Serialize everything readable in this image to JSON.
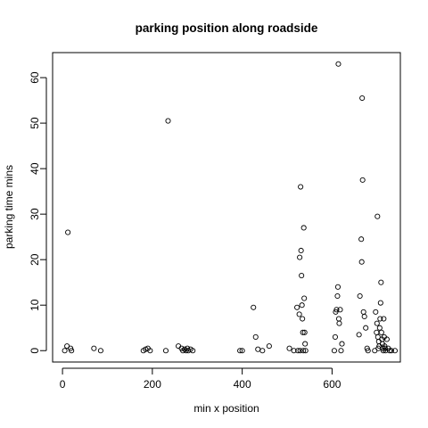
{
  "chart_data": {
    "type": "scatter",
    "title": "parking position along roadside",
    "xlabel": "min x position",
    "ylabel": "parking time mins",
    "xlim": [
      -22,
      752
    ],
    "ylim": [
      -2.5,
      65.5
    ],
    "x_ticks": [
      0,
      200,
      400,
      600
    ],
    "y_ticks": [
      0,
      10,
      20,
      30,
      40,
      50,
      60
    ],
    "grid": false,
    "legend": "none",
    "marker": "open-circle",
    "color": "#000000",
    "points": [
      [
        5,
        0
      ],
      [
        10,
        1
      ],
      [
        12,
        26
      ],
      [
        18,
        0.5
      ],
      [
        20,
        0
      ],
      [
        70,
        0.5
      ],
      [
        85,
        0
      ],
      [
        180,
        0
      ],
      [
        185,
        0.3
      ],
      [
        190,
        0.5
      ],
      [
        195,
        0
      ],
      [
        230,
        0
      ],
      [
        235,
        50.5
      ],
      [
        258,
        1
      ],
      [
        265,
        0.5
      ],
      [
        268,
        0
      ],
      [
        272,
        0.3
      ],
      [
        275,
        0
      ],
      [
        278,
        0.5
      ],
      [
        280,
        0
      ],
      [
        285,
        0.3
      ],
      [
        290,
        0
      ],
      [
        395,
        0
      ],
      [
        400,
        0
      ],
      [
        425,
        9.5
      ],
      [
        430,
        3
      ],
      [
        435,
        0.3
      ],
      [
        445,
        0
      ],
      [
        460,
        1
      ],
      [
        505,
        0.5
      ],
      [
        515,
        0
      ],
      [
        522,
        9.5
      ],
      [
        524,
        0
      ],
      [
        527,
        8
      ],
      [
        528,
        20.5
      ],
      [
        529,
        0
      ],
      [
        530,
        36
      ],
      [
        531,
        22
      ],
      [
        532,
        16.5
      ],
      [
        533,
        10
      ],
      [
        534,
        7
      ],
      [
        535,
        4
      ],
      [
        536,
        0
      ],
      [
        537,
        27
      ],
      [
        538,
        11.5
      ],
      [
        539,
        4
      ],
      [
        540,
        1.5
      ],
      [
        541,
        0
      ],
      [
        605,
        0
      ],
      [
        607,
        3
      ],
      [
        608,
        8.5
      ],
      [
        610,
        9
      ],
      [
        612,
        12
      ],
      [
        613,
        14
      ],
      [
        614,
        63
      ],
      [
        615,
        7
      ],
      [
        616,
        6
      ],
      [
        618,
        9
      ],
      [
        620,
        0
      ],
      [
        622,
        1.5
      ],
      [
        660,
        3.5
      ],
      [
        662,
        12
      ],
      [
        665,
        24.5
      ],
      [
        666,
        19.5
      ],
      [
        667,
        55.5
      ],
      [
        668,
        37.5
      ],
      [
        670,
        8.5
      ],
      [
        672,
        7.5
      ],
      [
        675,
        5
      ],
      [
        678,
        0.5
      ],
      [
        680,
        0
      ],
      [
        695,
        0
      ],
      [
        697,
        8.5
      ],
      [
        699,
        4
      ],
      [
        700,
        6
      ],
      [
        701,
        29.5
      ],
      [
        702,
        3
      ],
      [
        703,
        0.5
      ],
      [
        704,
        2
      ],
      [
        705,
        1
      ],
      [
        706,
        5
      ],
      [
        707,
        7
      ],
      [
        708,
        10.5
      ],
      [
        709,
        15
      ],
      [
        710,
        4
      ],
      [
        711,
        2.5
      ],
      [
        712,
        1.5
      ],
      [
        713,
        0.5
      ],
      [
        714,
        0
      ],
      [
        715,
        7
      ],
      [
        716,
        3
      ],
      [
        717,
        1
      ],
      [
        718,
        0.5
      ],
      [
        719,
        0
      ],
      [
        722,
        2.5
      ],
      [
        725,
        0.5
      ],
      [
        728,
        0
      ],
      [
        732,
        0
      ],
      [
        740,
        0
      ]
    ]
  }
}
